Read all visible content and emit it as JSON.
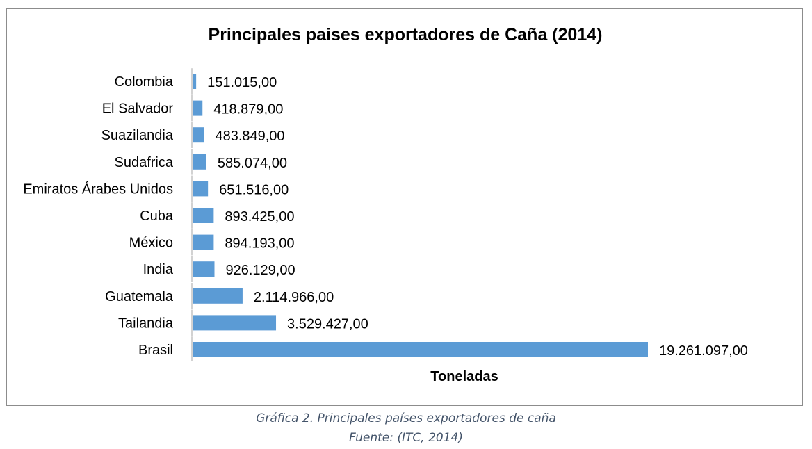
{
  "chart_data": {
    "type": "bar",
    "orientation": "horizontal",
    "title": "Principales paises exportadores de Caña (2014)",
    "xlabel": "Toneladas",
    "ylabel": "",
    "categories": [
      "Colombia",
      "El Salvador",
      "Suazilandia",
      "Sudafrica",
      "Emiratos Árabes Unidos",
      "Cuba",
      "México",
      "India",
      "Guatemala",
      "Tailandia",
      "Brasil"
    ],
    "values": [
      151015,
      418879,
      483849,
      585074,
      651516,
      893425,
      894193,
      926129,
      2114966,
      3529427,
      19261097
    ],
    "value_labels": [
      "151.015,00",
      "418.879,00",
      "483.849,00",
      "585.074,00",
      "651.516,00",
      "893.425,00",
      "894.193,00",
      "926.129,00",
      "2.114.966,00",
      "3.529.427,00",
      "19.261.097,00"
    ],
    "xlim": [
      0,
      19261097
    ],
    "grid": false,
    "legend": "none",
    "bar_color": "#5b9bd5"
  },
  "caption": {
    "title": "Gráfica 2. Principales países exportadores de caña",
    "source": "Fuente: (ITC, 2014)"
  }
}
